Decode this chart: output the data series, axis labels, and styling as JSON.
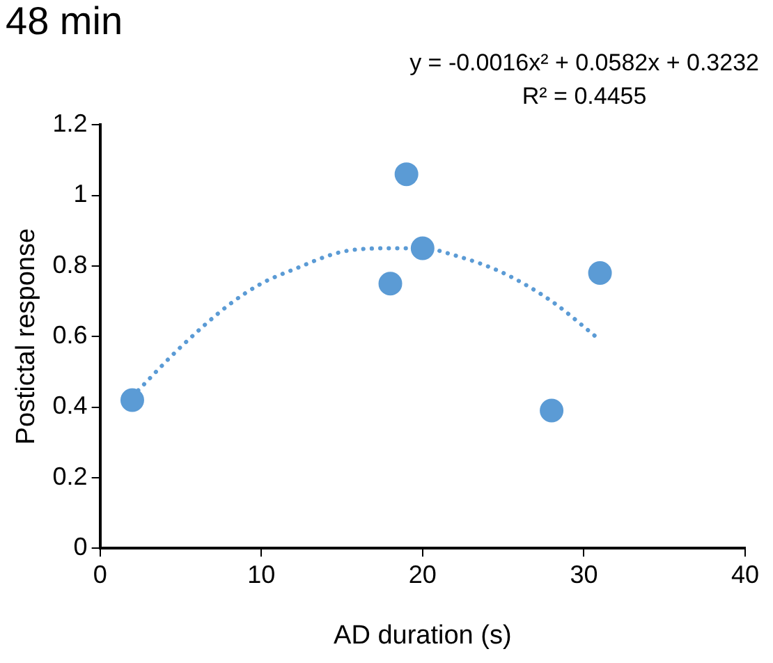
{
  "chart_data": {
    "type": "scatter",
    "title": "48 min",
    "xlabel": "AD duration (s)",
    "ylabel": "Postictal response",
    "annotations": [
      "y = -0.0016x² + 0.0582x + 0.3232",
      "R² = 0.4455"
    ],
    "series": [
      {
        "type": "scatter",
        "color": "#5b9bd5",
        "marker": "circle",
        "x": [
          2,
          18,
          19,
          20,
          28,
          31
        ],
        "values": [
          0.42,
          0.75,
          1.06,
          0.85,
          0.39,
          0.78
        ]
      },
      {
        "type": "line",
        "color": "#5b9bd5",
        "line_style": "dotted",
        "marker": "none",
        "x": [
          2,
          5,
          8,
          10,
          12,
          15,
          18,
          20,
          22,
          25,
          28,
          31
        ],
        "values": [
          0.43,
          0.57,
          0.69,
          0.75,
          0.79,
          0.84,
          0.85,
          0.85,
          0.83,
          0.78,
          0.7,
          0.59
        ]
      }
    ],
    "xlim": [
      0,
      40
    ],
    "xticks": [
      0,
      10,
      20,
      30,
      40
    ],
    "ylim": [
      0,
      1.2
    ],
    "yticks": [
      0,
      0.2,
      0.4,
      0.6,
      0.8,
      1,
      1.2
    ],
    "grid": false,
    "legend": false
  }
}
